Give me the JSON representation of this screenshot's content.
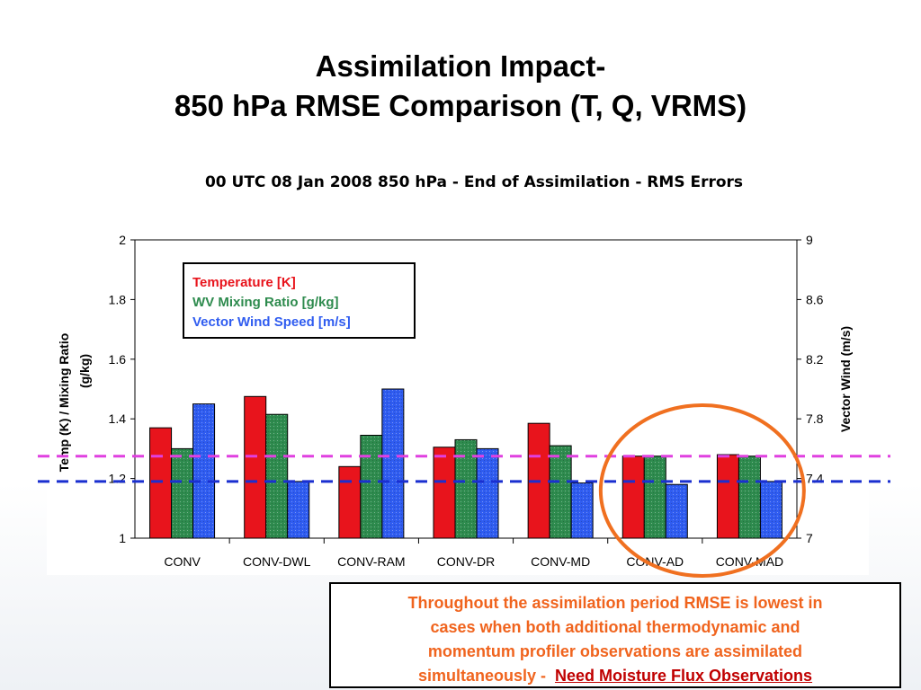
{
  "slide": {
    "title_line1": "Assimilation Impact-",
    "title_line2": "850 hPa RMSE Comparison (T, Q, VRMS)"
  },
  "note": {
    "line1": "Throughout the assimilation period RMSE is lowest in",
    "line2": "cases when both additional thermodynamic and",
    "line3": "momentum profiler observations are assimilated",
    "line4_prefix": "simultaneously -",
    "line4_emphasis": "Need Moisture Flux Observations"
  },
  "colors": {
    "temperature": "#e8141c",
    "wv_mixing_ratio": "#2e8b4e",
    "vector_wind": "#2f5cf0",
    "magenta_line": "#e040e0",
    "blue_line": "#1a2fd0",
    "highlight_circle": "#f07020",
    "note_text": "#f0641e",
    "note_link": "#c00000"
  },
  "chart_data": {
    "type": "bar",
    "title": "00 UTC 08 Jan 2008 850 hPa - End of Assimilation - RMS Errors",
    "categories": [
      "CONV",
      "CONV-DWL",
      "CONV-RAM",
      "CONV-DR",
      "CONV-MD",
      "CONV-AD",
      "CONV-MAD"
    ],
    "series": [
      {
        "name": "Temperature [K]",
        "axis": "left",
        "values": [
          1.37,
          1.475,
          1.24,
          1.305,
          1.385,
          1.275,
          1.28
        ]
      },
      {
        "name": "WV Mixing Ratio [g/kg]",
        "axis": "left",
        "values": [
          1.3,
          1.415,
          1.345,
          1.33,
          1.31,
          1.275,
          1.275
        ]
      },
      {
        "name": "Vector Wind Speed [m/s]",
        "axis": "right",
        "values": [
          7.9,
          7.38,
          8.0,
          7.6,
          7.37,
          7.36,
          7.38
        ]
      }
    ],
    "ylabel": "Temp (K) / Mixing Ratio (g/kg)",
    "ylabel_lines": [
      "Temp (K) / Mixing Ratio",
      "(g/kg)"
    ],
    "y2label": "Vector Wind (m/s)",
    "ylim": [
      1,
      2
    ],
    "yticks": [
      "1",
      "1.2",
      "1.4",
      "1.6",
      "1.8",
      "2"
    ],
    "y2lim": [
      7,
      9
    ],
    "y2ticks": [
      "7",
      "7.4",
      "7.8",
      "8.2",
      "8.6",
      "9"
    ],
    "reference_lines": [
      {
        "style": "dashed",
        "color": "magenta",
        "value": 1.275
      },
      {
        "style": "dashed",
        "color": "blue",
        "value": 1.19
      }
    ],
    "highlight": {
      "shape": "circle",
      "categories": [
        "CONV-AD",
        "CONV-MAD"
      ]
    },
    "legend_position": "top-left",
    "grid": false
  }
}
